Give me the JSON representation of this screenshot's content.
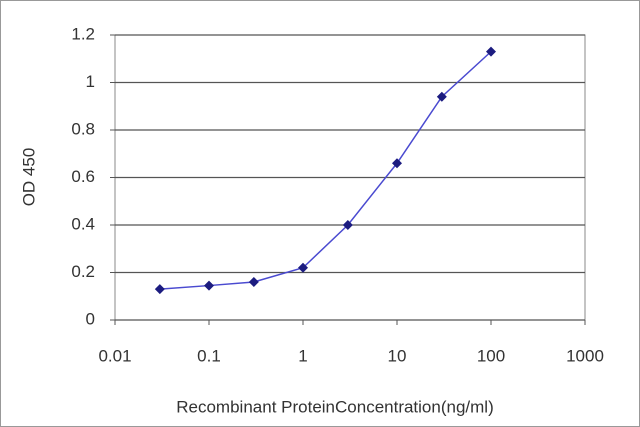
{
  "chart_data": {
    "type": "line",
    "x_label": "Recombinant ProteinConcentration(ng/ml)",
    "y_label": "OD 450",
    "x": [
      0.03,
      0.1,
      0.3,
      1,
      3,
      10,
      30,
      100
    ],
    "values": [
      0.13,
      0.145,
      0.16,
      0.22,
      0.4,
      0.66,
      0.94,
      1.13
    ],
    "color": "#4a4ad0",
    "marker_color": "#1c1c80",
    "xscale": "log",
    "xlim": [
      0.01,
      1000
    ],
    "xticks": [
      0.01,
      0.1,
      1,
      10,
      100,
      1000
    ],
    "ylim": [
      0,
      1.2
    ],
    "yticks": [
      0,
      0.2,
      0.4,
      0.6,
      0.8,
      1,
      1.2
    ],
    "grid": true
  }
}
